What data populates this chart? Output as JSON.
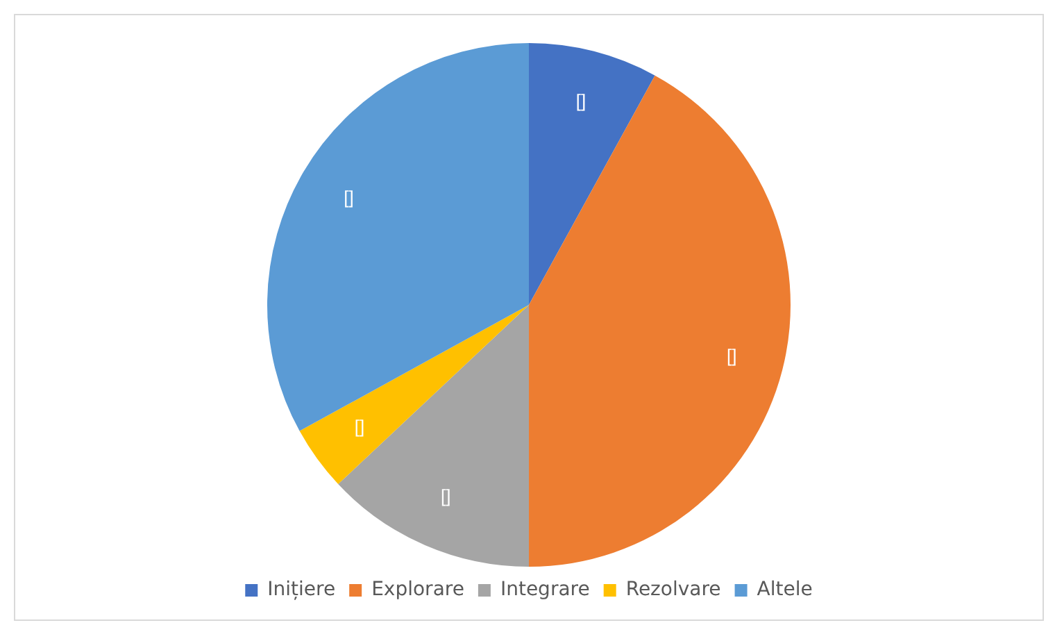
{
  "chart_data": {
    "type": "pie",
    "categories": [
      "Inițiere",
      "Explorare",
      "Integrare",
      "Rezolvare",
      "Altele"
    ],
    "values": [
      8,
      42,
      13,
      4,
      33
    ],
    "colors": [
      "#4472c4",
      "#ed7d31",
      "#a5a5a5",
      "#ffc000",
      "#5b9bd5"
    ],
    "value_labels": [
      "[]",
      "[]",
      "[]",
      "[]",
      "[]"
    ],
    "legend": "bottom"
  }
}
